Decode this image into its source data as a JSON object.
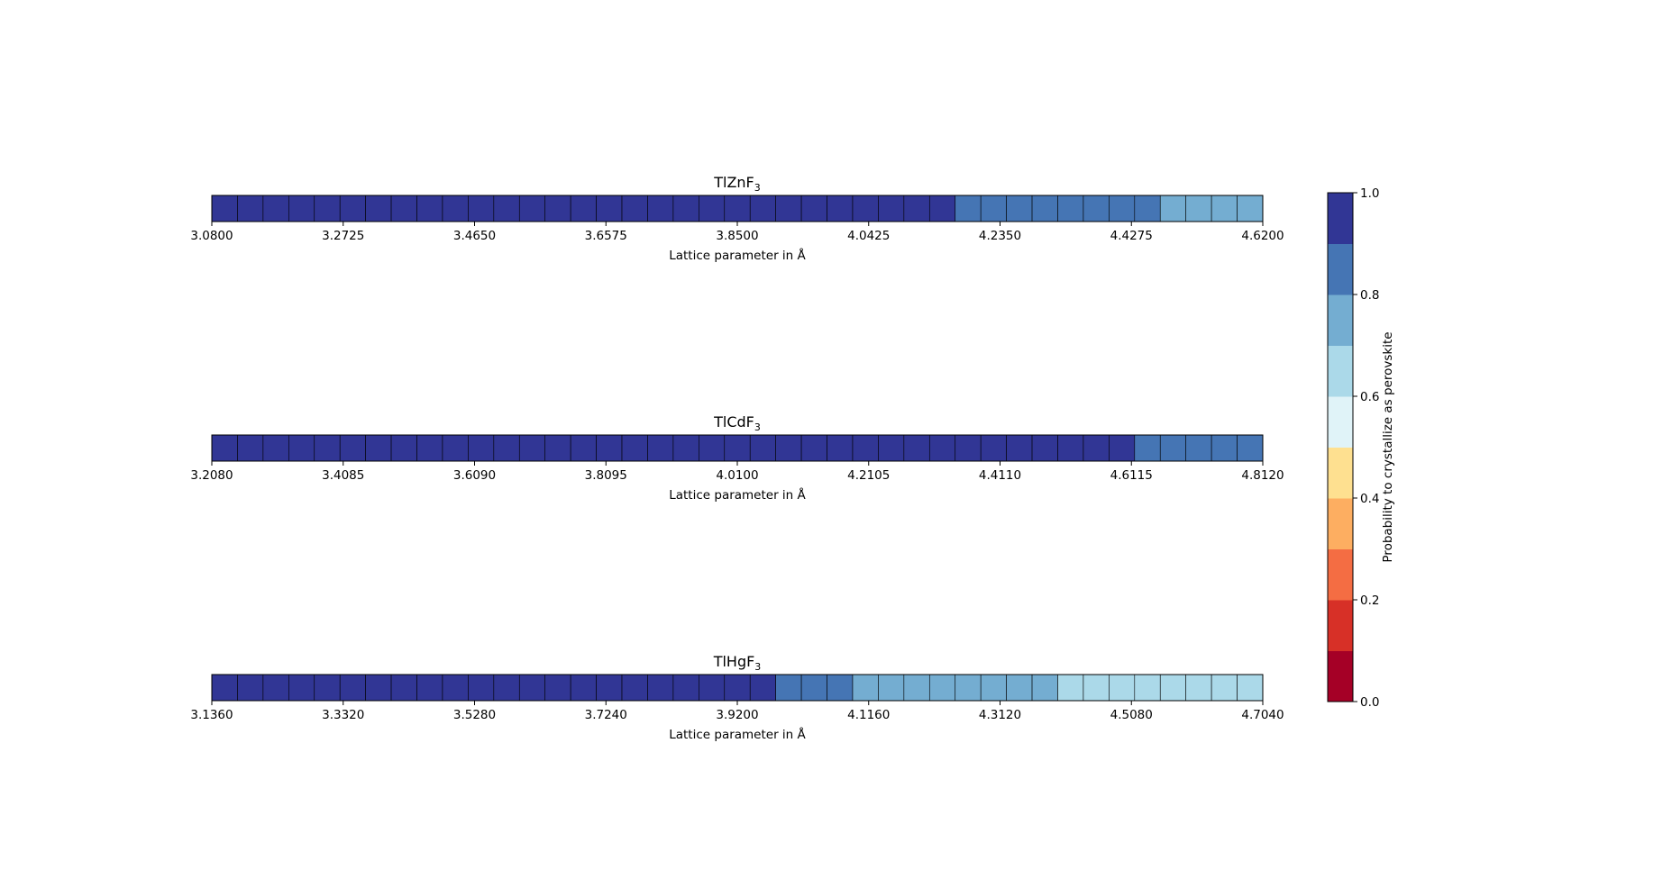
{
  "chart_data": [
    {
      "type": "heatmap",
      "title": "TlZnF",
      "title_subscript": "3",
      "xlabel": "Lattice parameter in Å",
      "xlim": [
        3.08,
        4.62
      ],
      "tick_labels": [
        "3.0800",
        "3.2725",
        "3.4650",
        "3.6575",
        "3.8500",
        "4.0425",
        "4.2350",
        "4.4275",
        "4.6200"
      ],
      "cell_count": 41,
      "values": [
        0.95,
        0.95,
        0.95,
        0.95,
        0.95,
        0.95,
        0.95,
        0.95,
        0.95,
        0.95,
        0.95,
        0.95,
        0.95,
        0.95,
        0.95,
        0.95,
        0.95,
        0.95,
        0.95,
        0.95,
        0.95,
        0.95,
        0.95,
        0.95,
        0.95,
        0.95,
        0.95,
        0.95,
        0.95,
        0.85,
        0.85,
        0.85,
        0.85,
        0.85,
        0.85,
        0.85,
        0.85,
        0.75,
        0.75,
        0.75,
        0.75
      ]
    },
    {
      "type": "heatmap",
      "title": "TlCdF",
      "title_subscript": "3",
      "xlabel": "Lattice parameter in Å",
      "xlim": [
        3.208,
        4.812
      ],
      "tick_labels": [
        "3.2080",
        "3.4085",
        "3.6090",
        "3.8095",
        "4.0100",
        "4.2105",
        "4.4110",
        "4.6115",
        "4.8120"
      ],
      "cell_count": 41,
      "values": [
        0.95,
        0.95,
        0.95,
        0.95,
        0.95,
        0.95,
        0.95,
        0.95,
        0.95,
        0.95,
        0.95,
        0.95,
        0.95,
        0.95,
        0.95,
        0.95,
        0.95,
        0.95,
        0.95,
        0.95,
        0.95,
        0.95,
        0.95,
        0.95,
        0.95,
        0.95,
        0.95,
        0.95,
        0.95,
        0.95,
        0.95,
        0.95,
        0.95,
        0.95,
        0.95,
        0.95,
        0.85,
        0.85,
        0.85,
        0.85,
        0.85
      ]
    },
    {
      "type": "heatmap",
      "title": "TlHgF",
      "title_subscript": "3",
      "xlabel": "Lattice parameter in Å",
      "xlim": [
        3.136,
        4.704
      ],
      "tick_labels": [
        "3.1360",
        "3.3320",
        "3.5280",
        "3.7240",
        "3.9200",
        "4.1160",
        "4.3120",
        "4.5080",
        "4.7040"
      ],
      "cell_count": 41,
      "values": [
        0.95,
        0.95,
        0.95,
        0.95,
        0.95,
        0.95,
        0.95,
        0.95,
        0.95,
        0.95,
        0.95,
        0.95,
        0.95,
        0.95,
        0.95,
        0.95,
        0.95,
        0.95,
        0.95,
        0.95,
        0.95,
        0.95,
        0.85,
        0.85,
        0.85,
        0.75,
        0.75,
        0.75,
        0.75,
        0.75,
        0.75,
        0.75,
        0.75,
        0.65,
        0.65,
        0.65,
        0.65,
        0.65,
        0.65,
        0.65,
        0.65
      ]
    }
  ],
  "colorbar": {
    "label": "Probability to crystallize as perovskite",
    "range": [
      0.0,
      1.0
    ],
    "tick_labels": [
      "0.0",
      "0.2",
      "0.4",
      "0.6",
      "0.8",
      "1.0"
    ],
    "tick_values": [
      0.0,
      0.2,
      0.4,
      0.6,
      0.8,
      1.0
    ],
    "bins": 10,
    "colors": [
      "#a50026",
      "#d73027",
      "#f46d43",
      "#fdae61",
      "#fee090",
      "#e0f3f8",
      "#abd9e9",
      "#74add1",
      "#4575b4",
      "#313695"
    ]
  },
  "colors": {
    "edge": "#000000"
  }
}
